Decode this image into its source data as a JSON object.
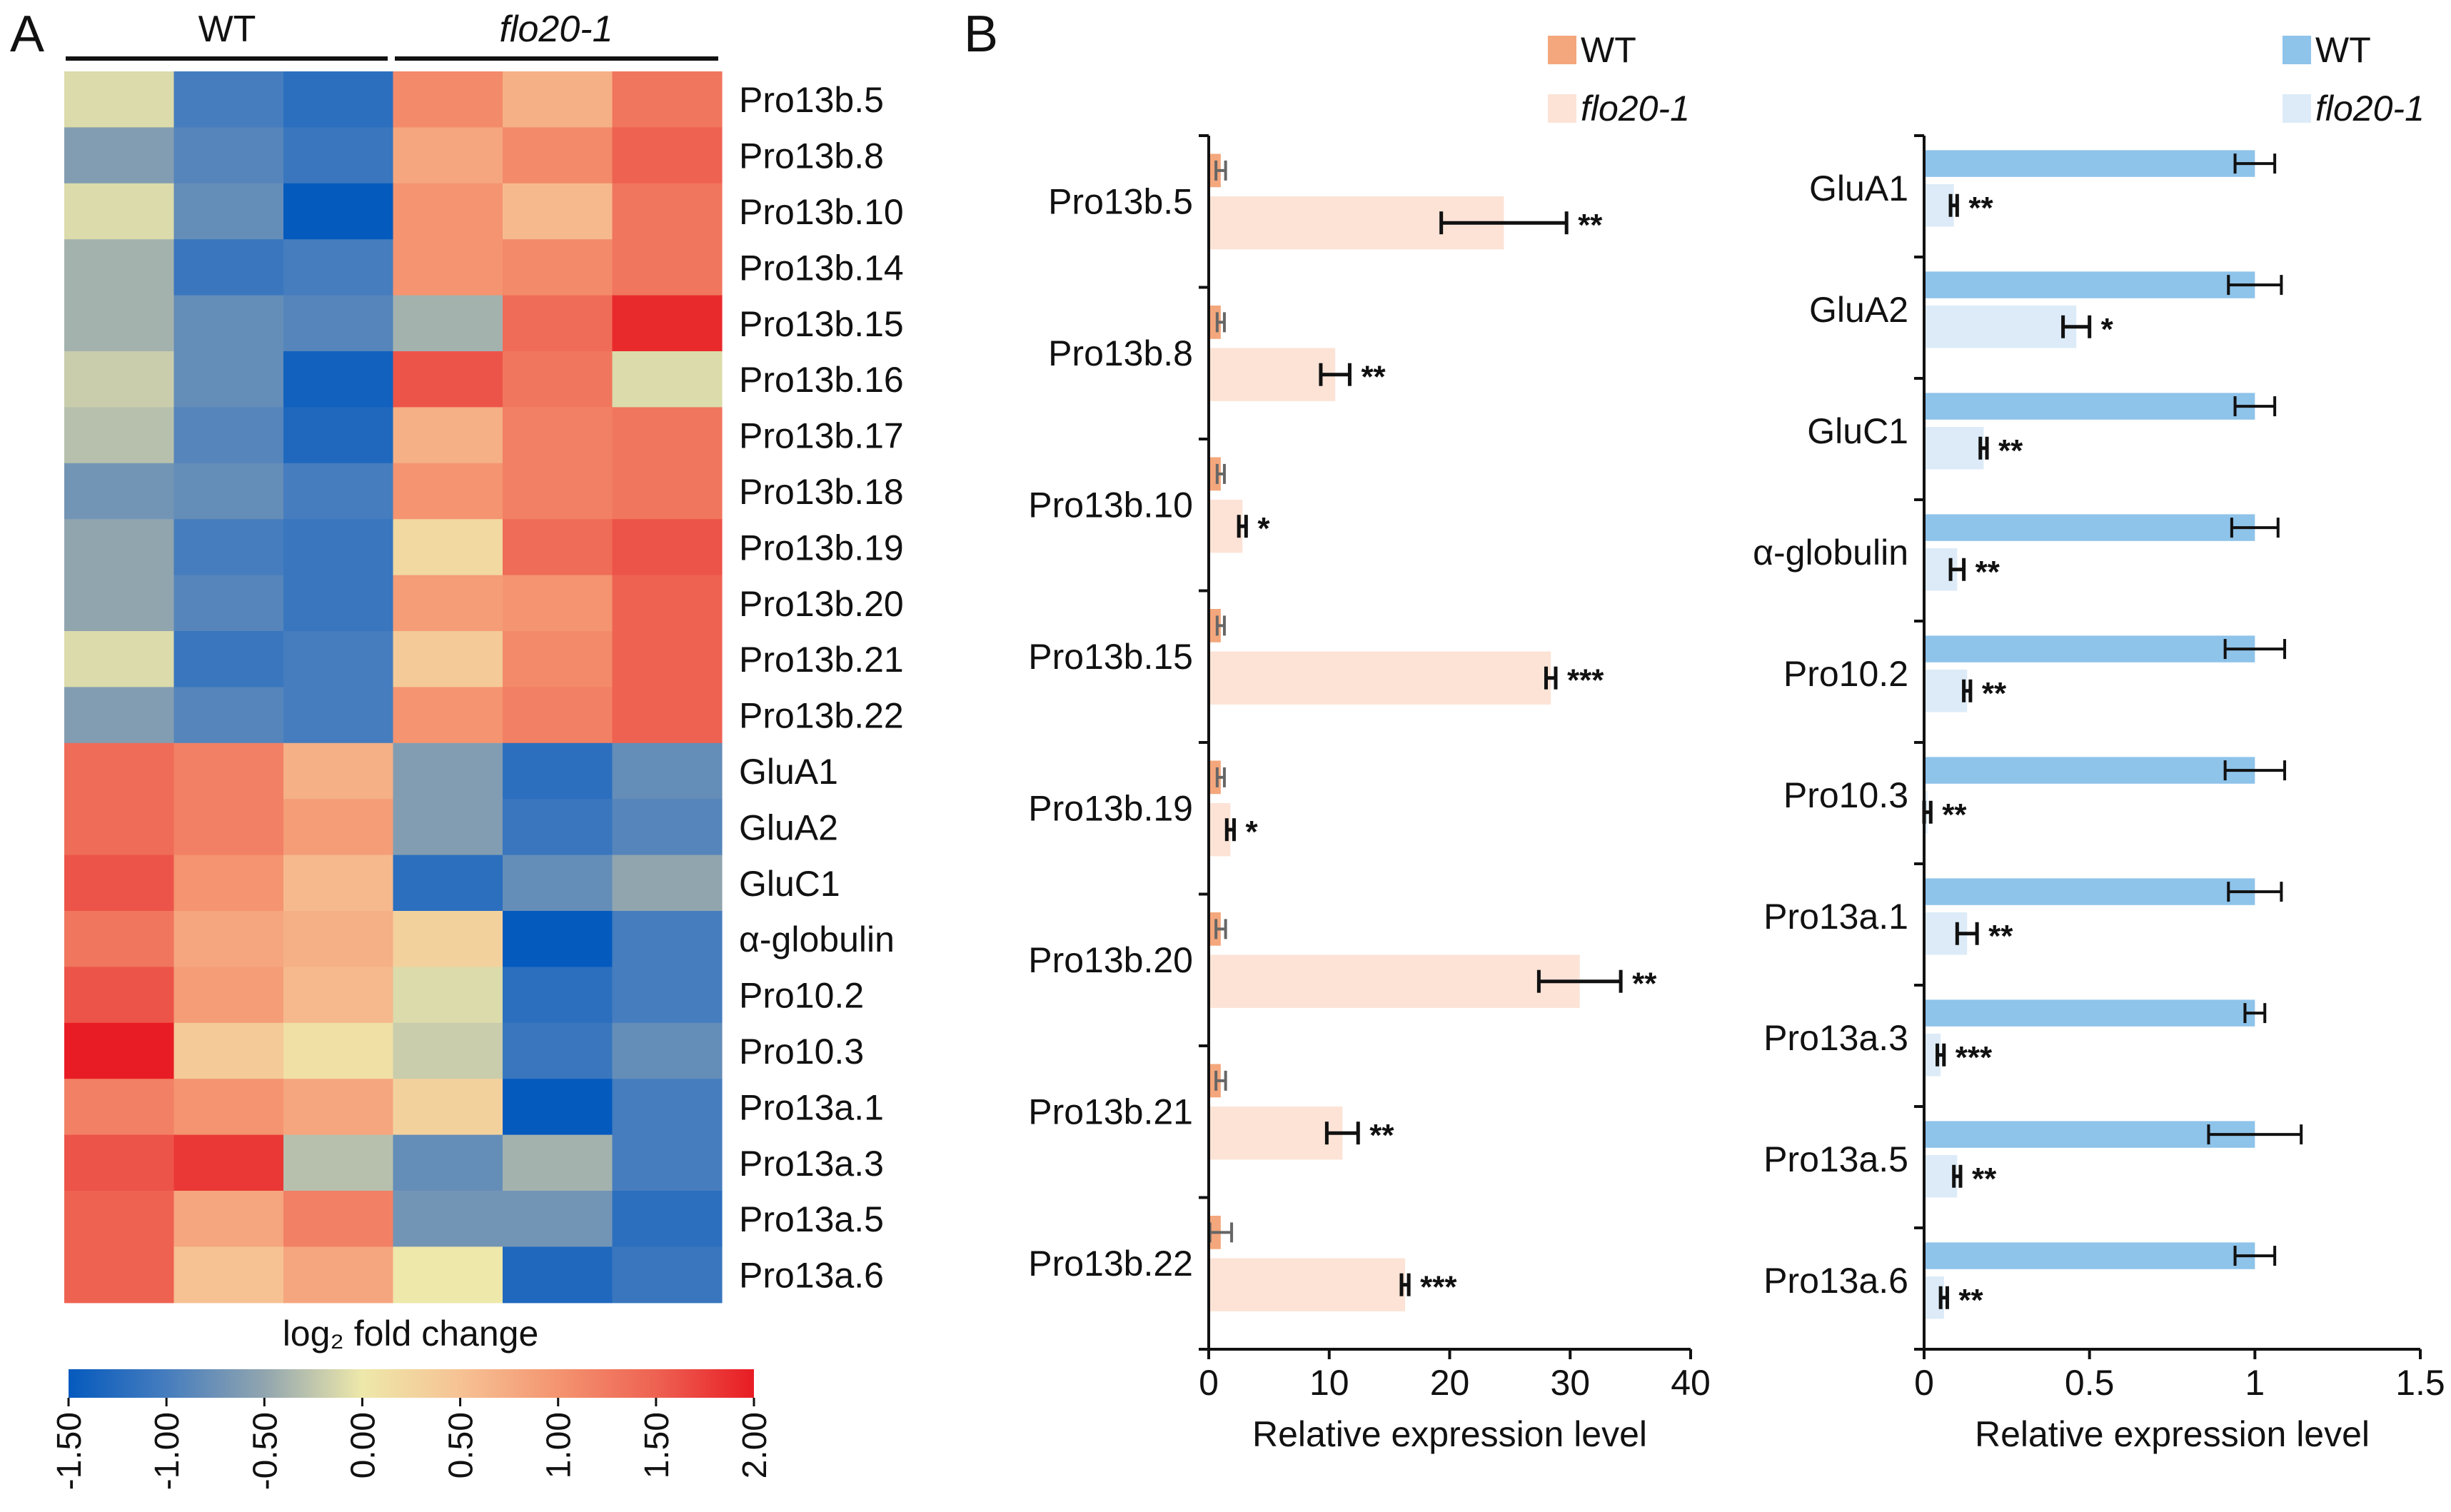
{
  "panel_labels": {
    "a": "A",
    "b": "B"
  },
  "chart_data": [
    {
      "type": "heatmap",
      "title": "",
      "group_labels": [
        "WT",
        "flo20-1"
      ],
      "rows": [
        "Pro13b.5",
        "Pro13b.8",
        "Pro13b.10",
        "Pro13b.14",
        "Pro13b.15",
        "Pro13b.16",
        "Pro13b.17",
        "Pro13b.18",
        "Pro13b.19",
        "Pro13b.20",
        "Pro13b.21",
        "Pro13b.22",
        "GluA1",
        "GluA2",
        "GluC1",
        "α-globulin",
        "Pro10.2",
        "Pro10.3",
        "Pro13a.1",
        "Pro13a.3",
        "Pro13a.5",
        "Pro13a.6"
      ],
      "values": [
        [
          -0.1,
          -1.0,
          -1.2,
          1.1,
          0.7,
          1.3
        ],
        [
          -0.6,
          -0.9,
          -1.1,
          0.8,
          1.1,
          1.5
        ],
        [
          -0.1,
          -0.8,
          -1.6,
          1.0,
          0.6,
          1.3
        ],
        [
          -0.4,
          -1.1,
          -1.0,
          1.0,
          1.1,
          1.3
        ],
        [
          -0.4,
          -0.8,
          -0.9,
          -0.4,
          1.4,
          1.9
        ],
        [
          -0.2,
          -0.8,
          -1.4,
          1.6,
          1.3,
          -0.1
        ],
        [
          -0.3,
          -0.9,
          -1.3,
          0.7,
          1.2,
          1.3
        ],
        [
          -0.7,
          -0.8,
          -1.0,
          1.0,
          1.2,
          1.3
        ],
        [
          -0.5,
          -1.0,
          -1.1,
          0.2,
          1.4,
          1.6
        ],
        [
          -0.5,
          -0.9,
          -1.1,
          0.9,
          1.0,
          1.5
        ],
        [
          -0.1,
          -1.1,
          -1.0,
          0.4,
          1.1,
          1.5
        ],
        [
          -0.6,
          -0.9,
          -1.0,
          1.0,
          1.2,
          1.5
        ],
        [
          1.4,
          1.2,
          0.7,
          -0.6,
          -1.2,
          -0.8
        ],
        [
          1.4,
          1.2,
          0.9,
          -0.6,
          -1.1,
          -0.9
        ],
        [
          1.6,
          1.0,
          0.6,
          -1.2,
          -0.8,
          -0.5
        ],
        [
          1.3,
          0.8,
          0.7,
          0.3,
          -1.5,
          -1.0
        ],
        [
          1.6,
          0.9,
          0.6,
          -0.1,
          -1.2,
          -1.0
        ],
        [
          2.0,
          0.4,
          0.1,
          -0.2,
          -1.1,
          -0.8
        ],
        [
          1.2,
          1.0,
          0.8,
          0.3,
          -1.5,
          -1.0
        ],
        [
          1.6,
          1.8,
          -0.3,
          -0.8,
          -0.4,
          -1.0
        ],
        [
          1.5,
          0.8,
          1.2,
          -0.7,
          -0.7,
          -1.2
        ],
        [
          1.5,
          0.5,
          0.8,
          0.0,
          -1.3,
          -1.1
        ]
      ],
      "colorbar": {
        "label": "log₂ fold change",
        "min": -1.5,
        "max": 2.0,
        "ticks": [
          "-1.50",
          "-1.00",
          "-0.50",
          "0.00",
          "0.50",
          "1.00",
          "1.50",
          "2.00"
        ],
        "tick_values": [
          -1.5,
          -1.0,
          -0.5,
          0.0,
          0.5,
          1.0,
          1.5,
          2.0
        ]
      }
    },
    {
      "type": "bar",
      "orientation": "horizontal",
      "categories": [
        "Pro13b.5",
        "Pro13b.8",
        "Pro13b.10",
        "Pro13b.15",
        "Pro13b.19",
        "Pro13b.20",
        "Pro13b.21",
        "Pro13b.22"
      ],
      "series": [
        {
          "name": "WT",
          "color": "#f4a77c",
          "values": [
            1,
            1,
            1,
            1,
            1,
            1,
            1,
            1
          ],
          "errors": [
            0.4,
            0.3,
            0.3,
            0.3,
            0.3,
            0.4,
            0.4,
            0.9
          ]
        },
        {
          "name": "flo20-1",
          "color": "#fce3d6",
          "values": [
            24.5,
            10.5,
            2.8,
            28.4,
            1.8,
            30.8,
            11.1,
            16.3
          ],
          "errors": [
            5.2,
            1.2,
            0.3,
            0.4,
            0.3,
            3.4,
            1.3,
            0.3
          ]
        }
      ],
      "significance": [
        "**",
        "**",
        "*",
        "***",
        "*",
        "**",
        "**",
        "***"
      ],
      "xlim": [
        0,
        40
      ],
      "xticks": [
        "0",
        "10",
        "20",
        "30",
        "40"
      ],
      "xtick_values": [
        0,
        10,
        20,
        30,
        40
      ],
      "xlabel": "Relative expression level",
      "legend_position": "top-right"
    },
    {
      "type": "bar",
      "orientation": "horizontal",
      "categories": [
        "GluA1",
        "GluA2",
        "GluC1",
        "α-globulin",
        "Pro10.2",
        "Pro10.3",
        "Pro13a.1",
        "Pro13a.3",
        "Pro13a.5",
        "Pro13a.6"
      ],
      "series": [
        {
          "name": "WT",
          "color": "#8ec3ea",
          "values": [
            1,
            1,
            1,
            1,
            1,
            1,
            1,
            1,
            1,
            1
          ],
          "errors": [
            0.06,
            0.08,
            0.06,
            0.07,
            0.09,
            0.09,
            0.08,
            0.03,
            0.14,
            0.06
          ]
        },
        {
          "name": "flo20-1",
          "color": "#dcebf7",
          "values": [
            0.09,
            0.46,
            0.18,
            0.1,
            0.13,
            0.01,
            0.13,
            0.05,
            0.1,
            0.06
          ],
          "errors": [
            0.01,
            0.04,
            0.01,
            0.02,
            0.01,
            0.01,
            0.03,
            0.01,
            0.01,
            0.01
          ]
        }
      ],
      "significance": [
        "**",
        "*",
        "**",
        "**",
        "**",
        "**",
        "**",
        "***",
        "**",
        "**"
      ],
      "xlim": [
        0,
        1.5
      ],
      "xticks": [
        "0",
        "0.5",
        "1",
        "1.5"
      ],
      "xtick_values": [
        0,
        0.5,
        1,
        1.5
      ],
      "xlabel": "Relative expression level",
      "legend_position": "top-right"
    }
  ]
}
